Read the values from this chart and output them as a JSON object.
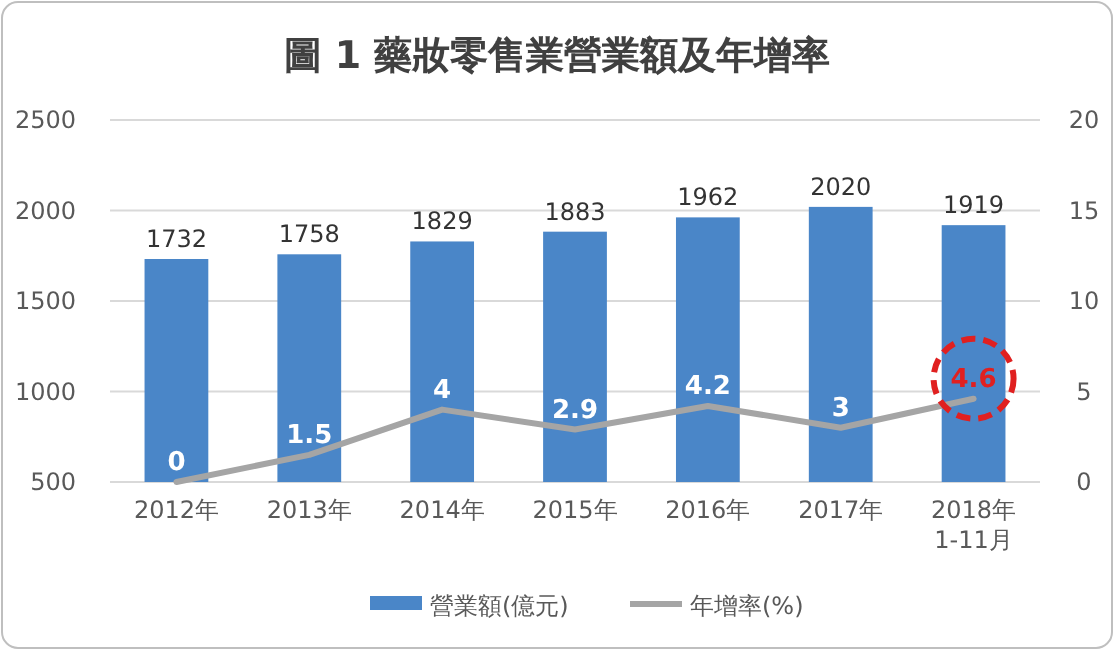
{
  "chart_data": {
    "type": "bar",
    "title": "圖 1 藥妝零售業營業額及年增率",
    "categories": [
      "2012年",
      "2013年",
      "2014年",
      "2015年",
      "2016年",
      "2017年",
      "2018年\n1-11月"
    ],
    "series": [
      {
        "name": "營業額(億元)",
        "color": "#4a86c8",
        "values": [
          1732,
          1758,
          1829,
          1883,
          1962,
          2020,
          1919
        ]
      },
      {
        "name": "年增率(%)",
        "type": "line",
        "axis": "y2",
        "color": "#a5a5a5",
        "values": [
          0,
          1.5,
          4,
          2.9,
          4.2,
          3,
          4.6
        ]
      }
    ],
    "ylim": [
      500,
      2500
    ],
    "yticks": [
      500,
      1000,
      1500,
      2000,
      2500
    ],
    "y2lim": [
      0,
      20
    ],
    "y2ticks": [
      0,
      5,
      10,
      15,
      20
    ],
    "grid": "y",
    "legend": "bottom",
    "data_labels": true,
    "marker": "none",
    "line_style": "solid"
  }
}
